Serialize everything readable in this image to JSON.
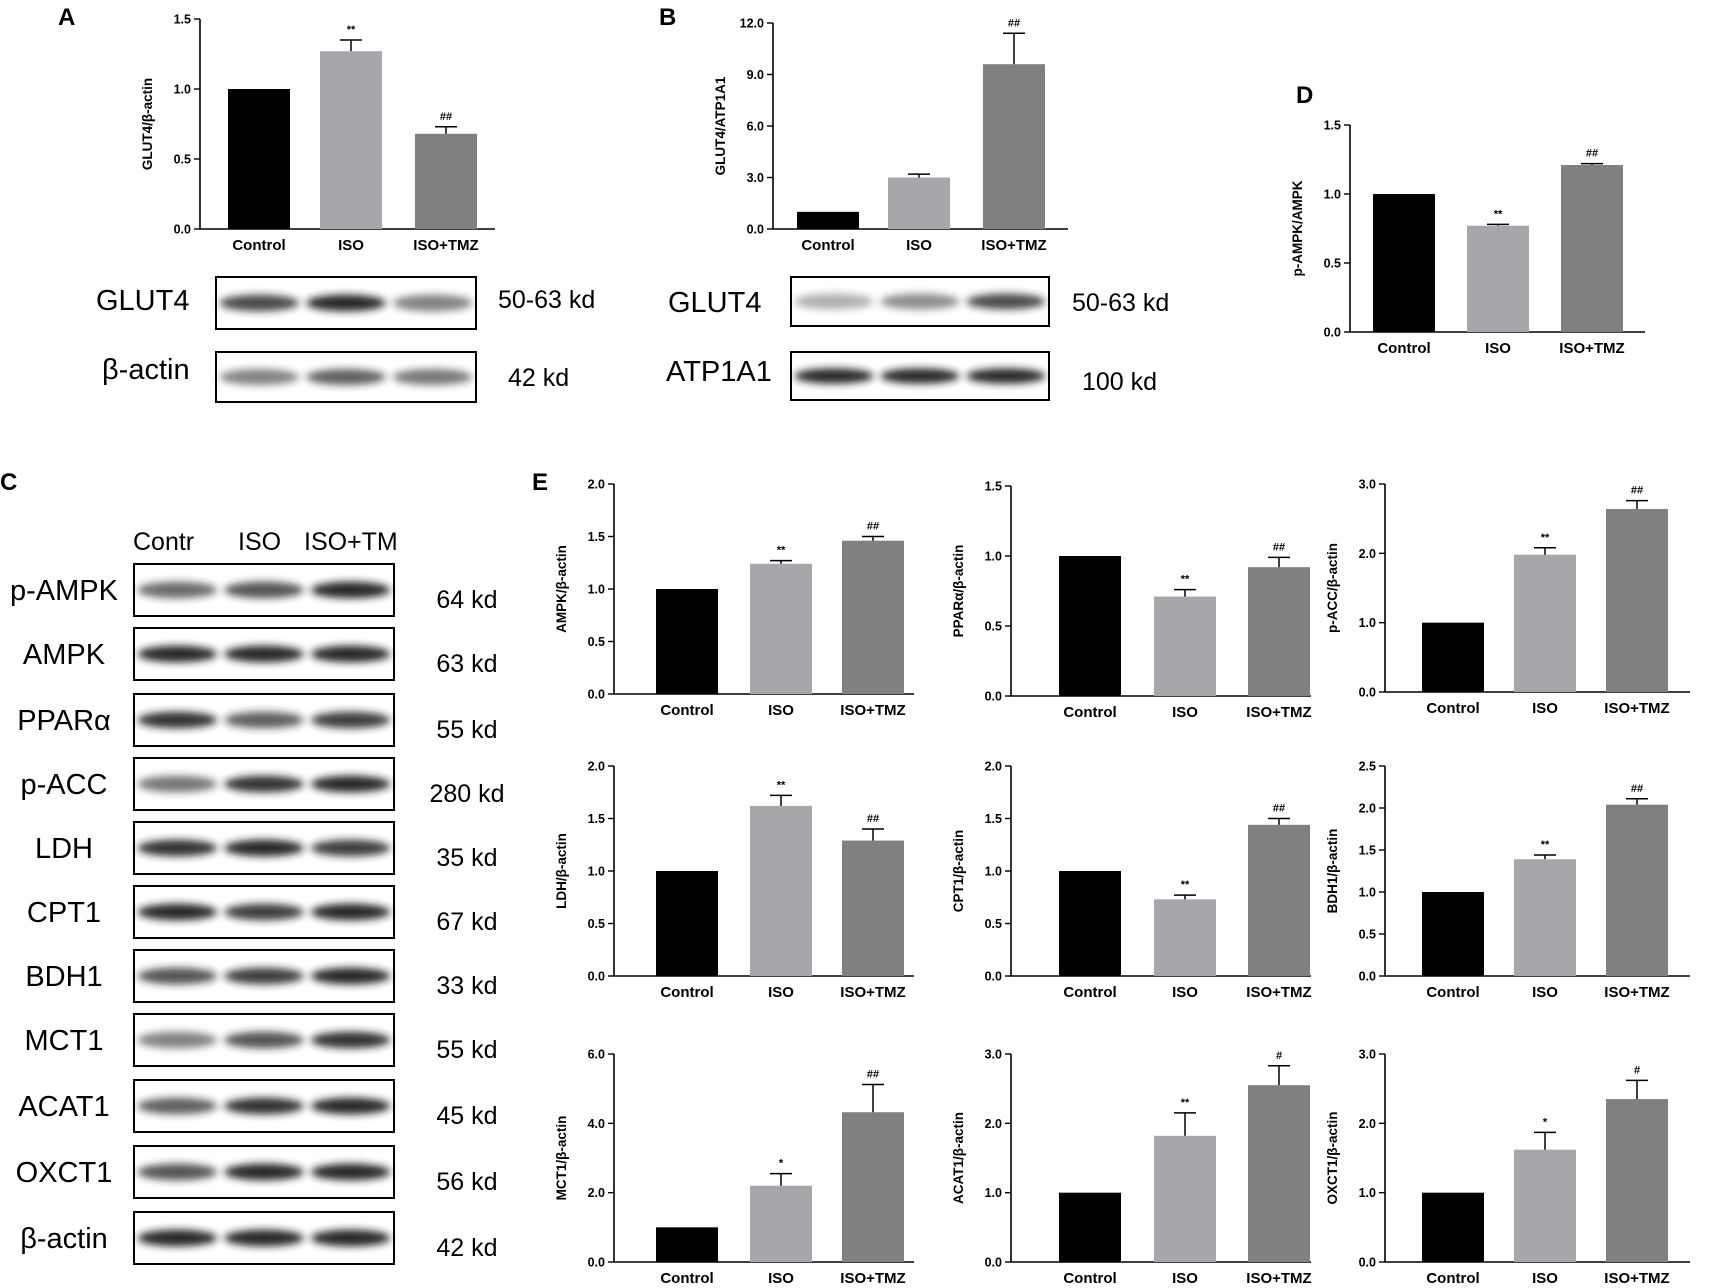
{
  "panels": [
    {
      "letter": "A"
    },
    {
      "letter": "B"
    },
    {
      "letter": "C"
    },
    {
      "letter": "D"
    },
    {
      "letter": "E"
    }
  ],
  "colors": {
    "control": "#000000",
    "iso": "#a7a6aa",
    "iso_tmz": "#808080",
    "band": "#1a1a1a"
  },
  "chart_data": [
    {
      "id": "A",
      "type": "bar",
      "categories": [
        "Control",
        "ISO",
        "ISO+TMZ"
      ],
      "ylabel": "GLUT4/β-actin",
      "ylim": [
        0,
        1.5
      ],
      "yticks": [
        "0.0",
        "0.5",
        "1.0",
        "1.5"
      ],
      "values": [
        1.0,
        1.27,
        0.68
      ],
      "errors": [
        0,
        0.08,
        0.05
      ],
      "sig": [
        "",
        "**",
        "##"
      ]
    },
    {
      "id": "B",
      "type": "bar",
      "categories": [
        "Control",
        "ISO",
        "ISO+TMZ"
      ],
      "ylabel": "GLUT4/ATP1A1",
      "ylim": [
        0,
        12
      ],
      "yticks": [
        "0.0",
        "3.0",
        "6.0",
        "9.0",
        "12.0"
      ],
      "values": [
        1.0,
        3.0,
        9.6
      ],
      "errors": [
        0,
        0.2,
        1.8
      ],
      "sig": [
        "",
        "",
        "##"
      ]
    },
    {
      "id": "D",
      "type": "bar",
      "categories": [
        "Control",
        "ISO",
        "ISO+TMZ"
      ],
      "ylabel": "p-AMPK/AMPK",
      "ylim": [
        0,
        1.5
      ],
      "yticks": [
        "0.0",
        "0.5",
        "1.0",
        "1.5"
      ],
      "values": [
        1.0,
        0.77,
        1.21
      ],
      "errors": [
        0,
        0.01,
        0.01
      ],
      "sig": [
        "",
        "**",
        "##"
      ]
    },
    {
      "id": "E1",
      "type": "bar",
      "categories": [
        "Control",
        "ISO",
        "ISO+TMZ"
      ],
      "ylabel": "AMPK/β-actin",
      "ylim": [
        0,
        2.0
      ],
      "yticks": [
        "0.0",
        "0.5",
        "1.0",
        "1.5",
        "2.0"
      ],
      "values": [
        1.0,
        1.24,
        1.46
      ],
      "errors": [
        0,
        0.03,
        0.04
      ],
      "sig": [
        "",
        "**",
        "##"
      ]
    },
    {
      "id": "E2",
      "type": "bar",
      "categories": [
        "Control",
        "ISO",
        "ISO+TMZ"
      ],
      "ylabel": "PPARα/β-actin",
      "ylim": [
        0,
        1.5
      ],
      "yticks": [
        "0.0",
        "0.5",
        "1.0",
        "1.5"
      ],
      "values": [
        1.0,
        0.71,
        0.92
      ],
      "errors": [
        0,
        0.05,
        0.07
      ],
      "sig": [
        "",
        "**",
        "##"
      ]
    },
    {
      "id": "E3",
      "type": "bar",
      "categories": [
        "Control",
        "ISO",
        "ISO+TMZ"
      ],
      "ylabel": "p-ACC/β-actin",
      "ylim": [
        0,
        3.0
      ],
      "yticks": [
        "0.0",
        "1.0",
        "2.0",
        "3.0"
      ],
      "values": [
        1.0,
        1.98,
        2.64
      ],
      "errors": [
        0,
        0.1,
        0.12
      ],
      "sig": [
        "",
        "**",
        "##"
      ]
    },
    {
      "id": "E4",
      "type": "bar",
      "categories": [
        "Control",
        "ISO",
        "ISO+TMZ"
      ],
      "ylabel": "LDH/β-actin",
      "ylim": [
        0,
        2.0
      ],
      "yticks": [
        "0.0",
        "0.5",
        "1.0",
        "1.5",
        "2.0"
      ],
      "values": [
        1.0,
        1.62,
        1.29
      ],
      "errors": [
        0,
        0.1,
        0.11
      ],
      "sig": [
        "",
        "**",
        "##"
      ]
    },
    {
      "id": "E5",
      "type": "bar",
      "categories": [
        "Control",
        "ISO",
        "ISO+TMZ"
      ],
      "ylabel": "CPT1/β-actin",
      "ylim": [
        0,
        2.0
      ],
      "yticks": [
        "0.0",
        "0.5",
        "1.0",
        "1.5",
        "2.0"
      ],
      "values": [
        1.0,
        0.73,
        1.44
      ],
      "errors": [
        0,
        0.04,
        0.06
      ],
      "sig": [
        "",
        "**",
        "##"
      ]
    },
    {
      "id": "E6",
      "type": "bar",
      "categories": [
        "Control",
        "ISO",
        "ISO+TMZ"
      ],
      "ylabel": "BDH1/β-actin",
      "ylim": [
        0,
        2.5
      ],
      "yticks": [
        "0.0",
        "0.5",
        "1.0",
        "1.5",
        "2.0",
        "2.5"
      ],
      "values": [
        1.0,
        1.39,
        2.04
      ],
      "errors": [
        0,
        0.05,
        0.07
      ],
      "sig": [
        "",
        "**",
        "##"
      ]
    },
    {
      "id": "E7",
      "type": "bar",
      "categories": [
        "Control",
        "ISO",
        "ISO+TMZ"
      ],
      "ylabel": "MCT1/β-actin",
      "ylim": [
        0,
        6.0
      ],
      "yticks": [
        "0.0",
        "2.0",
        "4.0",
        "6.0"
      ],
      "values": [
        1.0,
        2.2,
        4.32
      ],
      "errors": [
        0,
        0.35,
        0.8
      ],
      "sig": [
        "",
        "*",
        "##"
      ]
    },
    {
      "id": "E8",
      "type": "bar",
      "categories": [
        "Control",
        "ISO",
        "ISO+TMZ"
      ],
      "ylabel": "ACAT1/β-actin",
      "ylim": [
        0,
        3.0
      ],
      "yticks": [
        "0.0",
        "1.0",
        "2.0",
        "3.0"
      ],
      "values": [
        1.0,
        1.82,
        2.55
      ],
      "errors": [
        0,
        0.33,
        0.28
      ],
      "sig": [
        "",
        "**",
        "#"
      ]
    },
    {
      "id": "E9",
      "type": "bar",
      "categories": [
        "Control",
        "ISO",
        "ISO+TMZ"
      ],
      "ylabel": "OXCT1/β-actin",
      "ylim": [
        0,
        3.0
      ],
      "yticks": [
        "0.0",
        "1.0",
        "2.0",
        "3.0"
      ],
      "values": [
        1.0,
        1.62,
        2.35
      ],
      "errors": [
        0,
        0.25,
        0.27
      ],
      "sig": [
        "",
        "*",
        "#"
      ]
    }
  ],
  "blots": {
    "A": [
      {
        "label": "GLUT4",
        "kd": "50-63 kd",
        "lanes": [
          0.8,
          0.95,
          0.55
        ]
      },
      {
        "label": "β-actin",
        "kd": "42 kd",
        "lanes": [
          0.55,
          0.7,
          0.6
        ]
      }
    ],
    "B": [
      {
        "label": "GLUT4",
        "kd": "50-63 kd",
        "lanes": [
          0.35,
          0.5,
          0.8
        ]
      },
      {
        "label": "ATP1A1",
        "kd": "100 kd",
        "lanes": [
          0.95,
          0.95,
          0.95
        ]
      }
    ],
    "C": {
      "lane_headers": [
        "Contr",
        "ISO",
        "ISO+TM"
      ],
      "rows": [
        {
          "label": "p-AMPK",
          "kd": "64 kd",
          "lanes": [
            0.65,
            0.75,
            0.95
          ]
        },
        {
          "label": "AMPK",
          "kd": "63 kd",
          "lanes": [
            0.95,
            0.95,
            0.95
          ]
        },
        {
          "label": "PPARα",
          "kd": "55 kd",
          "lanes": [
            0.9,
            0.7,
            0.85
          ]
        },
        {
          "label": "p-ACC",
          "kd": "280 kd",
          "lanes": [
            0.6,
            0.9,
            0.95
          ]
        },
        {
          "label": "LDH",
          "kd": "35 kd",
          "lanes": [
            0.9,
            0.95,
            0.85
          ]
        },
        {
          "label": "CPT1",
          "kd": "67 kd",
          "lanes": [
            0.95,
            0.85,
            0.95
          ]
        },
        {
          "label": "BDH1",
          "kd": "33 kd",
          "lanes": [
            0.75,
            0.85,
            0.95
          ]
        },
        {
          "label": "MCT1",
          "kd": "55 kd",
          "lanes": [
            0.55,
            0.75,
            0.9
          ]
        },
        {
          "label": "ACAT1",
          "kd": "45 kd",
          "lanes": [
            0.7,
            0.9,
            0.95
          ]
        },
        {
          "label": "OXCT1",
          "kd": "56 kd",
          "lanes": [
            0.75,
            0.95,
            0.95
          ]
        },
        {
          "label": "β-actin",
          "kd": "42 kd",
          "lanes": [
            0.95,
            0.95,
            0.95
          ]
        }
      ]
    }
  }
}
